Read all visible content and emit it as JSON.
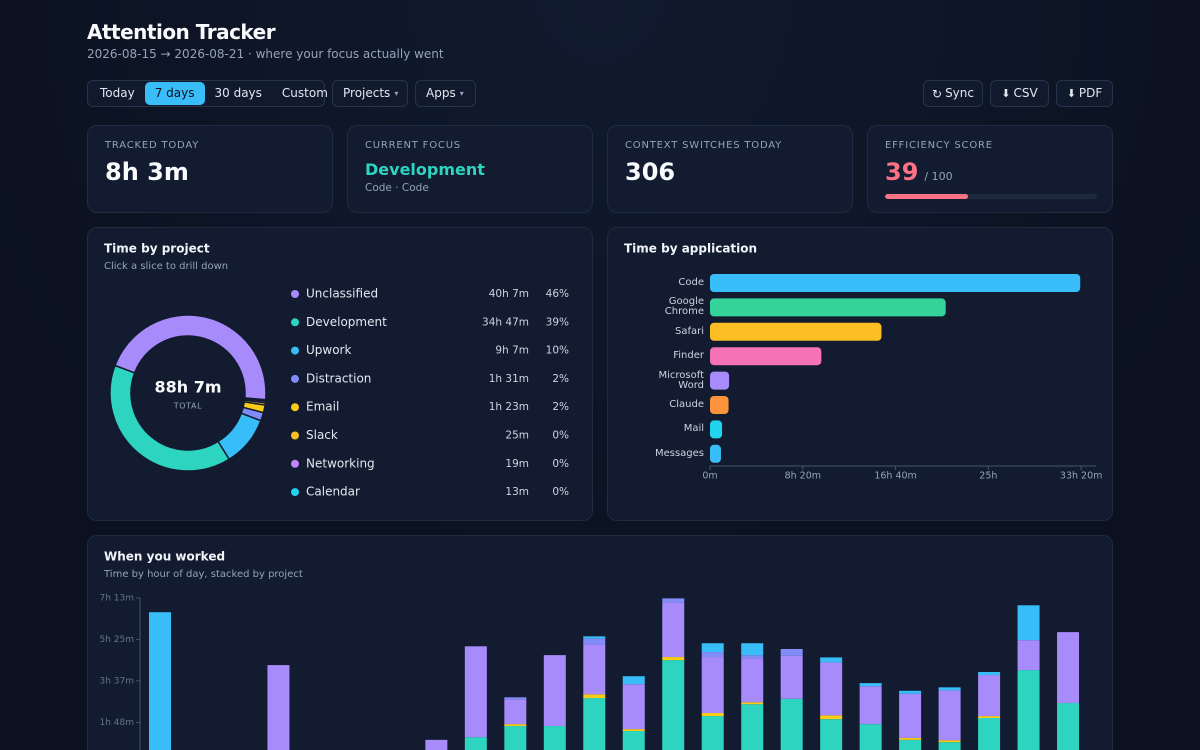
{
  "header": {
    "title": "Attention Tracker",
    "subtitle": "2026-08-15 → 2026-08-21 · where your focus actually went"
  },
  "controls": {
    "ranges": [
      "Today",
      "7 days",
      "30 days",
      "Custom"
    ],
    "active_range": 1,
    "filters": [
      "Projects",
      "Apps"
    ],
    "actions": [
      "Sync",
      "CSV",
      "PDF"
    ]
  },
  "stats": {
    "tracked": {
      "label": "TRACKED TODAY",
      "value": "8h 3m"
    },
    "focus": {
      "label": "CURRENT FOCUS",
      "value": "Development",
      "detail": "Code · Code"
    },
    "switches": {
      "label": "CONTEXT SWITCHES TODAY",
      "value": 306
    },
    "efficiency": {
      "label": "EFFICIENCY SCORE",
      "value": 39,
      "range": [
        0,
        100
      ],
      "max_label": "/ 100",
      "color": "#fb7185"
    }
  },
  "chart_data": [
    {
      "type": "donut",
      "title": "Time by project",
      "subtitle": "Click a slice to drill down",
      "center_value": "88h 7m",
      "center_label": "TOTAL",
      "categories": [
        "Unclassified",
        "Development",
        "Upwork",
        "Distraction",
        "Email",
        "Slack",
        "Networking",
        "Calendar"
      ],
      "colors": [
        "#a78bfa",
        "#2dd4bf",
        "#38bdf8",
        "#818cf8",
        "#facc15",
        "#fbbf24",
        "#c084fc",
        "#22d3ee"
      ],
      "values": [
        2407,
        2087,
        547,
        91,
        83,
        25,
        19,
        13
      ],
      "value_labels": [
        "40h 7m",
        "34h 47m",
        "9h 7m",
        "1h 31m",
        "1h 23m",
        "25m",
        "19m",
        "13m"
      ],
      "share_labels": [
        "46%",
        "39%",
        "10%",
        "2%",
        "2%",
        "0%",
        "0%",
        "0%"
      ]
    },
    {
      "type": "barh",
      "title": "Time by application",
      "categories": [
        "Code",
        "Google Chrome",
        "Safari",
        "Finder",
        "Microsoft Word",
        "Claude",
        "Mail",
        "Messages"
      ],
      "colors": [
        "#38bdf8",
        "#34d399",
        "#fbbf24",
        "#f472b6",
        "#a78bfa",
        "#fb923c",
        "#22d3ee",
        "#38bdf8"
      ],
      "values": [
        1995,
        1270,
        924,
        600,
        103,
        100,
        65,
        59
      ],
      "xlim": [
        0,
        2080
      ],
      "xticks": [
        {
          "value": 0,
          "label": "0m"
        },
        {
          "value": 500,
          "label": "8h 20m"
        },
        {
          "value": 1000,
          "label": "16h 40m"
        },
        {
          "value": 1500,
          "label": "25h"
        },
        {
          "value": 2000,
          "label": "33h 20m"
        }
      ]
    },
    {
      "type": "stacked-bar",
      "title": "When you worked",
      "subtitle": "Time by hour of day, stacked by project",
      "ylim": [
        0,
        433
      ],
      "yticks": [
        {
          "value": 433,
          "label": "7h 13m"
        },
        {
          "value": 325,
          "label": "5h 25m"
        },
        {
          "value": 217,
          "label": "3h 37m"
        },
        {
          "value": 108,
          "label": "1h 48m"
        }
      ],
      "series": [
        {
          "color": "#2dd4bf",
          "values": [
            0,
            0,
            0,
            0,
            0,
            0,
            0,
            0,
            70,
            99,
            99,
            172,
            86,
            271,
            125,
            156,
            170,
            117,
            104,
            63,
            57,
            120,
            245,
            159
          ]
        },
        {
          "color": "#facc15",
          "values": [
            0,
            0,
            0,
            0,
            0,
            0,
            0,
            0,
            0,
            5,
            0,
            10,
            5,
            8,
            8,
            5,
            0,
            10,
            0,
            5,
            5,
            5,
            0,
            0
          ]
        },
        {
          "color": "#a78bfa",
          "values": [
            0,
            0,
            0,
            258,
            0,
            0,
            0,
            63,
            237,
            65,
            185,
            130,
            117,
            143,
            146,
            115,
            112,
            138,
            99,
            115,
            130,
            107,
            78,
            185
          ]
        },
        {
          "color": "#818cf8",
          "values": [
            0,
            0,
            0,
            0,
            0,
            0,
            0,
            0,
            0,
            5,
            0,
            15,
            0,
            10,
            13,
            8,
            18,
            0,
            0,
            0,
            0,
            0,
            0,
            0
          ]
        },
        {
          "color": "#38bdf8",
          "values": [
            396,
            0,
            0,
            0,
            0,
            0,
            0,
            0,
            0,
            0,
            0,
            6,
            21,
            0,
            23,
            31,
            0,
            13,
            8,
            8,
            8,
            8,
            91,
            0
          ]
        }
      ]
    }
  ]
}
